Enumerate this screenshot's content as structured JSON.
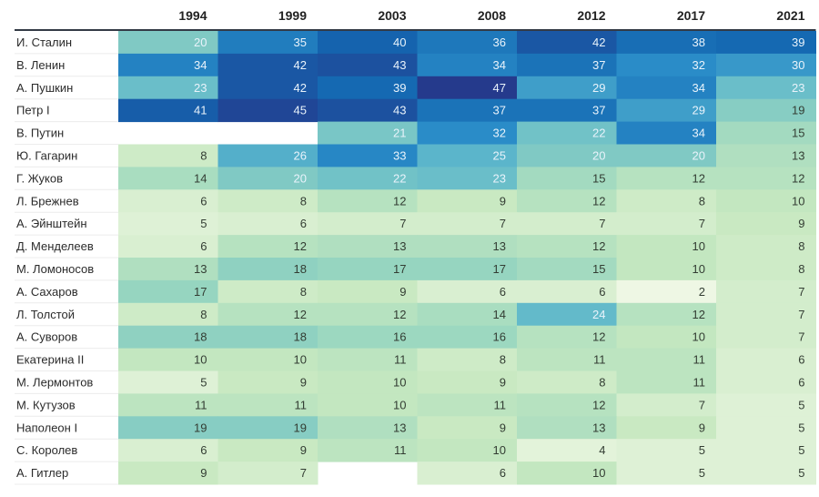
{
  "chart_data": {
    "type": "heatmap",
    "title": "",
    "xlabel": "",
    "ylabel": "",
    "columns": [
      "1994",
      "1999",
      "2003",
      "2008",
      "2012",
      "2017",
      "2021"
    ],
    "rows": [
      {
        "name": "И. Сталин",
        "values": [
          20,
          35,
          40,
          36,
          42,
          38,
          39
        ]
      },
      {
        "name": "В. Ленин",
        "values": [
          34,
          42,
          43,
          34,
          37,
          32,
          30
        ]
      },
      {
        "name": "А. Пушкин",
        "values": [
          23,
          42,
          39,
          47,
          29,
          34,
          23
        ]
      },
      {
        "name": "Петр I",
        "values": [
          41,
          45,
          43,
          37,
          37,
          29,
          19
        ]
      },
      {
        "name": "В. Путин",
        "values": [
          null,
          null,
          21,
          32,
          22,
          34,
          15
        ]
      },
      {
        "name": "Ю. Гагарин",
        "values": [
          8,
          26,
          33,
          25,
          20,
          20,
          13
        ]
      },
      {
        "name": "Г. Жуков",
        "values": [
          14,
          20,
          22,
          23,
          15,
          12,
          12
        ]
      },
      {
        "name": "Л. Брежнев",
        "values": [
          6,
          8,
          12,
          9,
          12,
          8,
          10
        ]
      },
      {
        "name": "А. Эйнштейн",
        "values": [
          5,
          6,
          7,
          7,
          7,
          7,
          9
        ]
      },
      {
        "name": "Д. Менделеев",
        "values": [
          6,
          12,
          13,
          13,
          12,
          10,
          8
        ]
      },
      {
        "name": "М. Ломоносов",
        "values": [
          13,
          18,
          17,
          17,
          15,
          10,
          8
        ]
      },
      {
        "name": "А. Сахаров",
        "values": [
          17,
          8,
          9,
          6,
          6,
          2,
          7
        ]
      },
      {
        "name": "Л. Толстой",
        "values": [
          8,
          12,
          12,
          14,
          24,
          12,
          7
        ]
      },
      {
        "name": "А. Суворов",
        "values": [
          18,
          18,
          16,
          16,
          12,
          10,
          7
        ]
      },
      {
        "name": "Екатерина II",
        "values": [
          10,
          10,
          11,
          8,
          11,
          11,
          6
        ]
      },
      {
        "name": "М. Лермонтов",
        "values": [
          5,
          9,
          10,
          9,
          8,
          11,
          6
        ]
      },
      {
        "name": "М. Кутузов",
        "values": [
          11,
          11,
          10,
          11,
          12,
          7,
          5
        ]
      },
      {
        "name": "Наполеон I",
        "values": [
          19,
          19,
          13,
          9,
          13,
          9,
          5
        ]
      },
      {
        "name": "С. Королев",
        "values": [
          6,
          9,
          11,
          10,
          4,
          5,
          5
        ]
      },
      {
        "name": "А. Гитлер",
        "values": [
          9,
          7,
          null,
          6,
          10,
          5,
          5
        ]
      }
    ],
    "value_range": [
      2,
      47
    ],
    "color_scale": [
      "#eef7e4",
      "#c6e8c0",
      "#96d5c0",
      "#5fb8cb",
      "#2a8cc8",
      "#1466b0",
      "#253a8c"
    ],
    "text_color_dark": "#333d33",
    "text_color_light": "#e9f3fb",
    "header_rule_color": "#333a45"
  }
}
